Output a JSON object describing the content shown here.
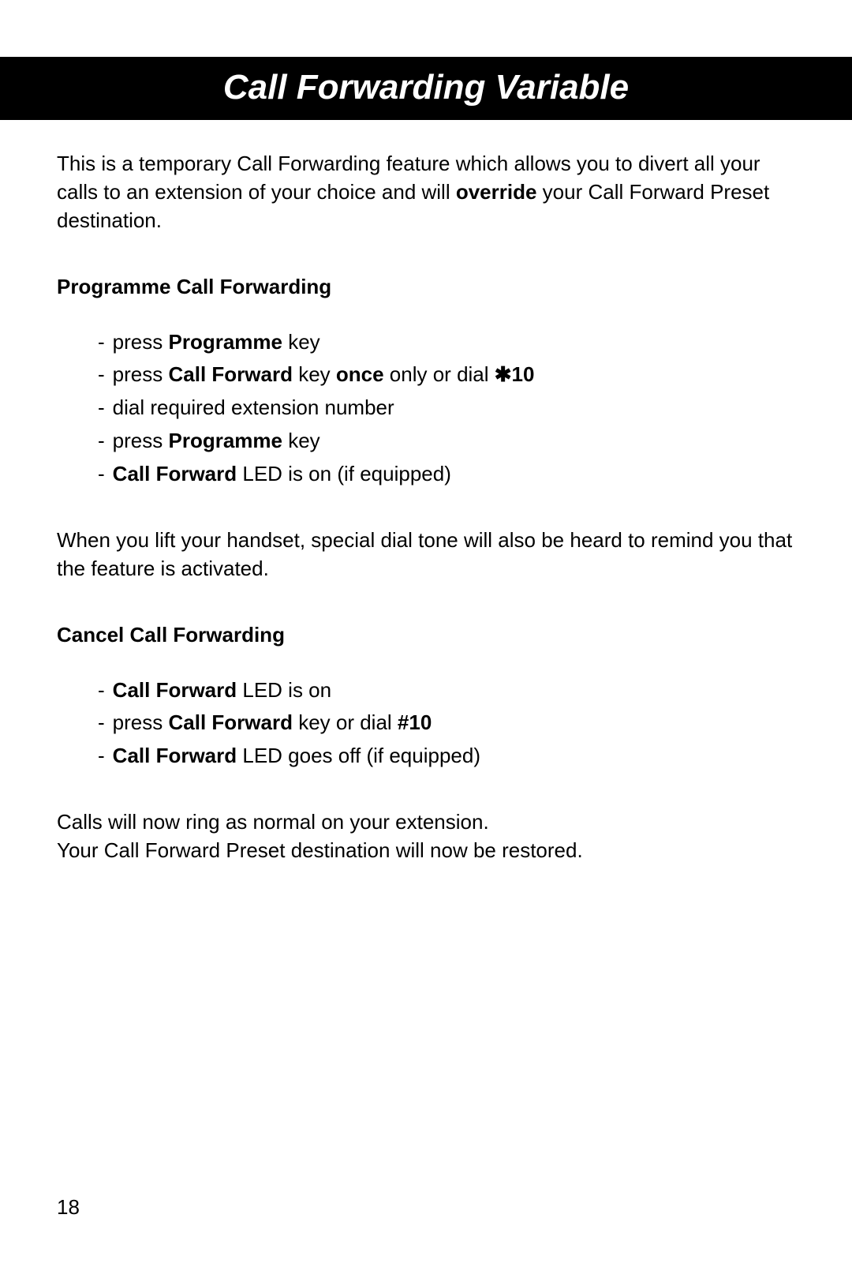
{
  "title": "Call Forwarding Variable",
  "title_fontsize": 44,
  "body_fontsize": 26,
  "line_height": 1.38,
  "colors": {
    "bg": "#ffffff",
    "text": "#000000",
    "title_bg": "#000000",
    "title_fg": "#ffffff"
  },
  "intro": {
    "pre": "This is a temporary Call Forwarding feature which allows you to divert all your calls to an extension of your choice and will ",
    "bold": "override",
    "post": " your Call Forward Preset destination."
  },
  "section1": {
    "heading": "Programme Call Forwarding",
    "items": [
      {
        "parts": [
          {
            "t": "press "
          },
          {
            "t": "Programme",
            "b": true
          },
          {
            "t": " key"
          }
        ]
      },
      {
        "parts": [
          {
            "t": "press "
          },
          {
            "t": "Call Forward",
            "b": true
          },
          {
            "t": " key "
          },
          {
            "t": "once",
            "b": true
          },
          {
            "t": " only or dial "
          },
          {
            "t": "✱10",
            "b": true
          }
        ]
      },
      {
        "parts": [
          {
            "t": "dial required extension number"
          }
        ]
      },
      {
        "parts": [
          {
            "t": "press "
          },
          {
            "t": "Programme",
            "b": true
          },
          {
            "t": " key"
          }
        ]
      },
      {
        "parts": [
          {
            "t": "Call Forward",
            "b": true
          },
          {
            "t": " LED is on (if equipped)"
          }
        ]
      }
    ]
  },
  "note1": "When you lift your handset, special dial tone will also be heard to remind you that the feature is activated.",
  "section2": {
    "heading": "Cancel Call Forwarding",
    "items": [
      {
        "parts": [
          {
            "t": "Call Forward",
            "b": true
          },
          {
            "t": " LED is on"
          }
        ]
      },
      {
        "parts": [
          {
            "t": "press "
          },
          {
            "t": "Call Forward",
            "b": true
          },
          {
            "t": " key or dial "
          },
          {
            "t": "#10",
            "b": true
          }
        ]
      },
      {
        "parts": [
          {
            "t": "Call Forward",
            "b": true
          },
          {
            "t": " LED goes off (if equipped)"
          }
        ]
      }
    ]
  },
  "closing": {
    "line1": "Calls will now ring as normal on your extension.",
    "line2": "Your Call Forward Preset destination will now be restored."
  },
  "page_number": "18"
}
